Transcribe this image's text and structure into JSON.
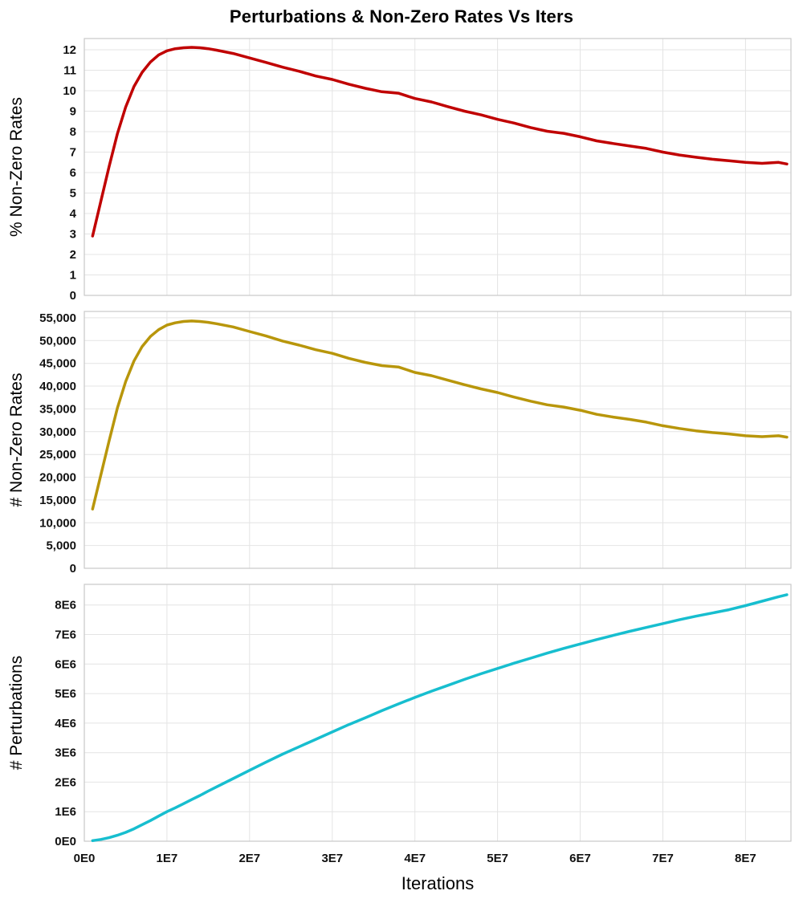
{
  "title": "Perturbations & Non-Zero Rates Vs Iters",
  "xlabel": "Iterations",
  "xlim": [
    0,
    85500000.0
  ],
  "x_ticks": {
    "values": [
      0,
      10000000.0,
      20000000.0,
      30000000.0,
      40000000.0,
      50000000.0,
      60000000.0,
      70000000.0,
      80000000.0
    ],
    "labels": [
      "0E0",
      "1E7",
      "2E7",
      "3E7",
      "4E7",
      "5E7",
      "6E7",
      "7E7",
      "8E7"
    ]
  },
  "grid_color": "#e4e4e4",
  "chart_data": [
    {
      "type": "line",
      "name": "pct-non-zero-rates",
      "ylabel": "% Non-Zero Rates",
      "color": "#c00000",
      "ylim": [
        0,
        12.55
      ],
      "y_ticks": {
        "values": [
          0,
          1,
          2,
          3,
          4,
          5,
          6,
          7,
          8,
          9,
          10,
          11,
          12
        ],
        "labels": [
          "0",
          "1",
          "2",
          "3",
          "4",
          "5",
          "6",
          "7",
          "8",
          "9",
          "10",
          "11",
          "12"
        ]
      },
      "x": [
        1000000.0,
        2000000.0,
        3000000.0,
        4000000.0,
        5000000.0,
        6000000.0,
        7000000.0,
        8000000.0,
        9000000.0,
        10000000.0,
        11000000.0,
        12000000.0,
        13000000.0,
        14000000.0,
        15000000.0,
        16000000.0,
        18000000.0,
        20000000.0,
        22000000.0,
        24000000.0,
        26000000.0,
        28000000.0,
        30000000.0,
        32000000.0,
        34000000.0,
        36000000.0,
        38000000.0,
        40000000.0,
        42000000.0,
        44000000.0,
        46000000.0,
        48000000.0,
        50000000.0,
        52000000.0,
        54000000.0,
        56000000.0,
        58000000.0,
        60000000.0,
        62000000.0,
        64000000.0,
        66000000.0,
        68000000.0,
        70000000.0,
        72000000.0,
        74000000.0,
        76000000.0,
        78000000.0,
        80000000.0,
        82000000.0,
        84000000.0,
        85000000.0
      ],
      "y": [
        2.9,
        4.6,
        6.3,
        7.9,
        9.2,
        10.2,
        10.9,
        11.4,
        11.75,
        11.95,
        12.05,
        12.1,
        12.12,
        12.1,
        12.05,
        11.98,
        11.82,
        11.6,
        11.38,
        11.15,
        10.95,
        10.72,
        10.55,
        10.32,
        10.12,
        9.95,
        9.88,
        9.62,
        9.45,
        9.22,
        9.0,
        8.82,
        8.6,
        8.42,
        8.2,
        8.02,
        7.92,
        7.75,
        7.55,
        7.42,
        7.3,
        7.18,
        7.0,
        6.86,
        6.75,
        6.65,
        6.58,
        6.5,
        6.45,
        6.5,
        6.42
      ]
    },
    {
      "type": "line",
      "name": "num-non-zero-rates",
      "ylabel": "# Non-Zero Rates",
      "color": "#b8960b",
      "ylim": [
        0,
        56400
      ],
      "y_ticks": {
        "values": [
          0,
          5000,
          10000,
          15000,
          20000,
          25000,
          30000,
          35000,
          40000,
          45000,
          50000,
          55000
        ],
        "labels": [
          "0",
          "5,000",
          "10,000",
          "15,000",
          "20,000",
          "25,000",
          "30,000",
          "35,000",
          "40,000",
          "45,000",
          "50,000",
          "55,000"
        ]
      },
      "x": [
        1000000.0,
        2000000.0,
        3000000.0,
        4000000.0,
        5000000.0,
        6000000.0,
        7000000.0,
        8000000.0,
        9000000.0,
        10000000.0,
        11000000.0,
        12000000.0,
        13000000.0,
        14000000.0,
        15000000.0,
        16000000.0,
        18000000.0,
        20000000.0,
        22000000.0,
        24000000.0,
        26000000.0,
        28000000.0,
        30000000.0,
        32000000.0,
        34000000.0,
        36000000.0,
        38000000.0,
        40000000.0,
        42000000.0,
        44000000.0,
        46000000.0,
        48000000.0,
        50000000.0,
        52000000.0,
        54000000.0,
        56000000.0,
        58000000.0,
        60000000.0,
        62000000.0,
        64000000.0,
        66000000.0,
        68000000.0,
        70000000.0,
        72000000.0,
        74000000.0,
        76000000.0,
        78000000.0,
        80000000.0,
        82000000.0,
        84000000.0,
        85000000.0
      ],
      "y": [
        13000,
        20500,
        28000,
        35200,
        41000,
        45500,
        48700,
        50900,
        52400,
        53400,
        53900,
        54200,
        54300,
        54200,
        54000,
        53700,
        53000,
        52000,
        51000,
        49900,
        49000,
        48000,
        47200,
        46100,
        45200,
        44500,
        44200,
        43000,
        42300,
        41300,
        40300,
        39400,
        38600,
        37600,
        36700,
        35900,
        35400,
        34700,
        33800,
        33200,
        32700,
        32100,
        31300,
        30700,
        30200,
        29800,
        29500,
        29100,
        28900,
        29100,
        28800
      ]
    },
    {
      "type": "line",
      "name": "num-perturbations",
      "ylabel": "# Perturbations",
      "color": "#17becf",
      "ylim": [
        0,
        8700000.0
      ],
      "y_ticks": {
        "values": [
          0,
          1000000.0,
          2000000.0,
          3000000.0,
          4000000.0,
          5000000.0,
          6000000.0,
          7000000.0,
          8000000.0
        ],
        "labels": [
          "0E0",
          "1E6",
          "2E6",
          "3E6",
          "4E6",
          "5E6",
          "6E6",
          "7E6",
          "8E6"
        ]
      },
      "x": [
        1000000.0,
        2000000.0,
        3000000.0,
        4000000.0,
        5000000.0,
        6000000.0,
        7000000.0,
        8000000.0,
        9000000.0,
        10000000.0,
        11000000.0,
        12000000.0,
        13000000.0,
        14000000.0,
        15000000.0,
        16000000.0,
        18000000.0,
        20000000.0,
        22000000.0,
        24000000.0,
        26000000.0,
        28000000.0,
        30000000.0,
        32000000.0,
        34000000.0,
        36000000.0,
        38000000.0,
        40000000.0,
        42000000.0,
        44000000.0,
        46000000.0,
        48000000.0,
        50000000.0,
        52000000.0,
        54000000.0,
        56000000.0,
        58000000.0,
        60000000.0,
        62000000.0,
        64000000.0,
        66000000.0,
        68000000.0,
        70000000.0,
        72000000.0,
        74000000.0,
        76000000.0,
        78000000.0,
        80000000.0,
        82000000.0,
        84000000.0,
        85000000.0
      ],
      "y": [
        20000,
        60000,
        120000,
        200000,
        300000,
        420000,
        560000,
        700000,
        850000,
        1000000.0,
        1130000.0,
        1270000.0,
        1410000.0,
        1550000.0,
        1700000.0,
        1840000.0,
        2120000.0,
        2400000.0,
        2680000.0,
        2950000.0,
        3200000.0,
        3450000.0,
        3700000.0,
        3950000.0,
        4180000.0,
        4420000.0,
        4650000.0,
        4870000.0,
        5080000.0,
        5280000.0,
        5480000.0,
        5670000.0,
        5850000.0,
        6030000.0,
        6200000.0,
        6370000.0,
        6530000.0,
        6680000.0,
        6830000.0,
        6970000.0,
        7110000.0,
        7240000.0,
        7370000.0,
        7500000.0,
        7620000.0,
        7730000.0,
        7840000.0,
        7980000.0,
        8130000.0,
        8280000.0,
        8350000.0
      ]
    }
  ]
}
